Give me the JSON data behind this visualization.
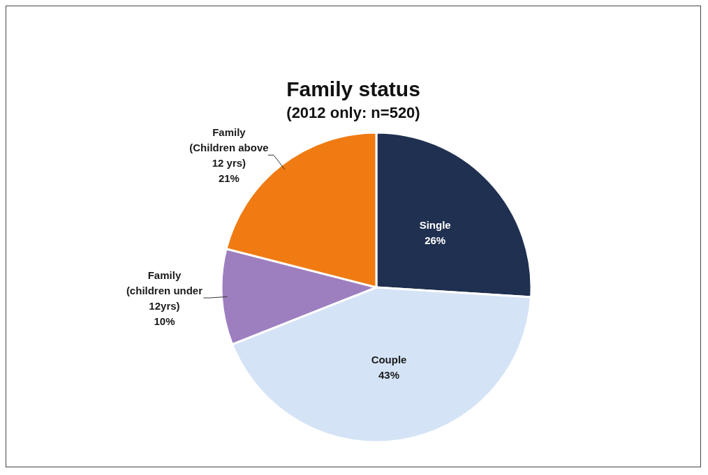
{
  "chart_data": {
    "type": "pie",
    "title": "Family status",
    "subtitle": "(2012 only: n=520)",
    "categories": [
      "Single",
      "Couple",
      "Family (children under 12yrs)",
      "Family (Children above 12 yrs)"
    ],
    "values": [
      26,
      43,
      10,
      21
    ],
    "colors": [
      "#1f3050",
      "#d5e3f6",
      "#9d7fc0",
      "#f07b12"
    ],
    "value_labels": [
      "26%",
      "43%",
      "10%",
      "21%"
    ],
    "legend": false
  }
}
